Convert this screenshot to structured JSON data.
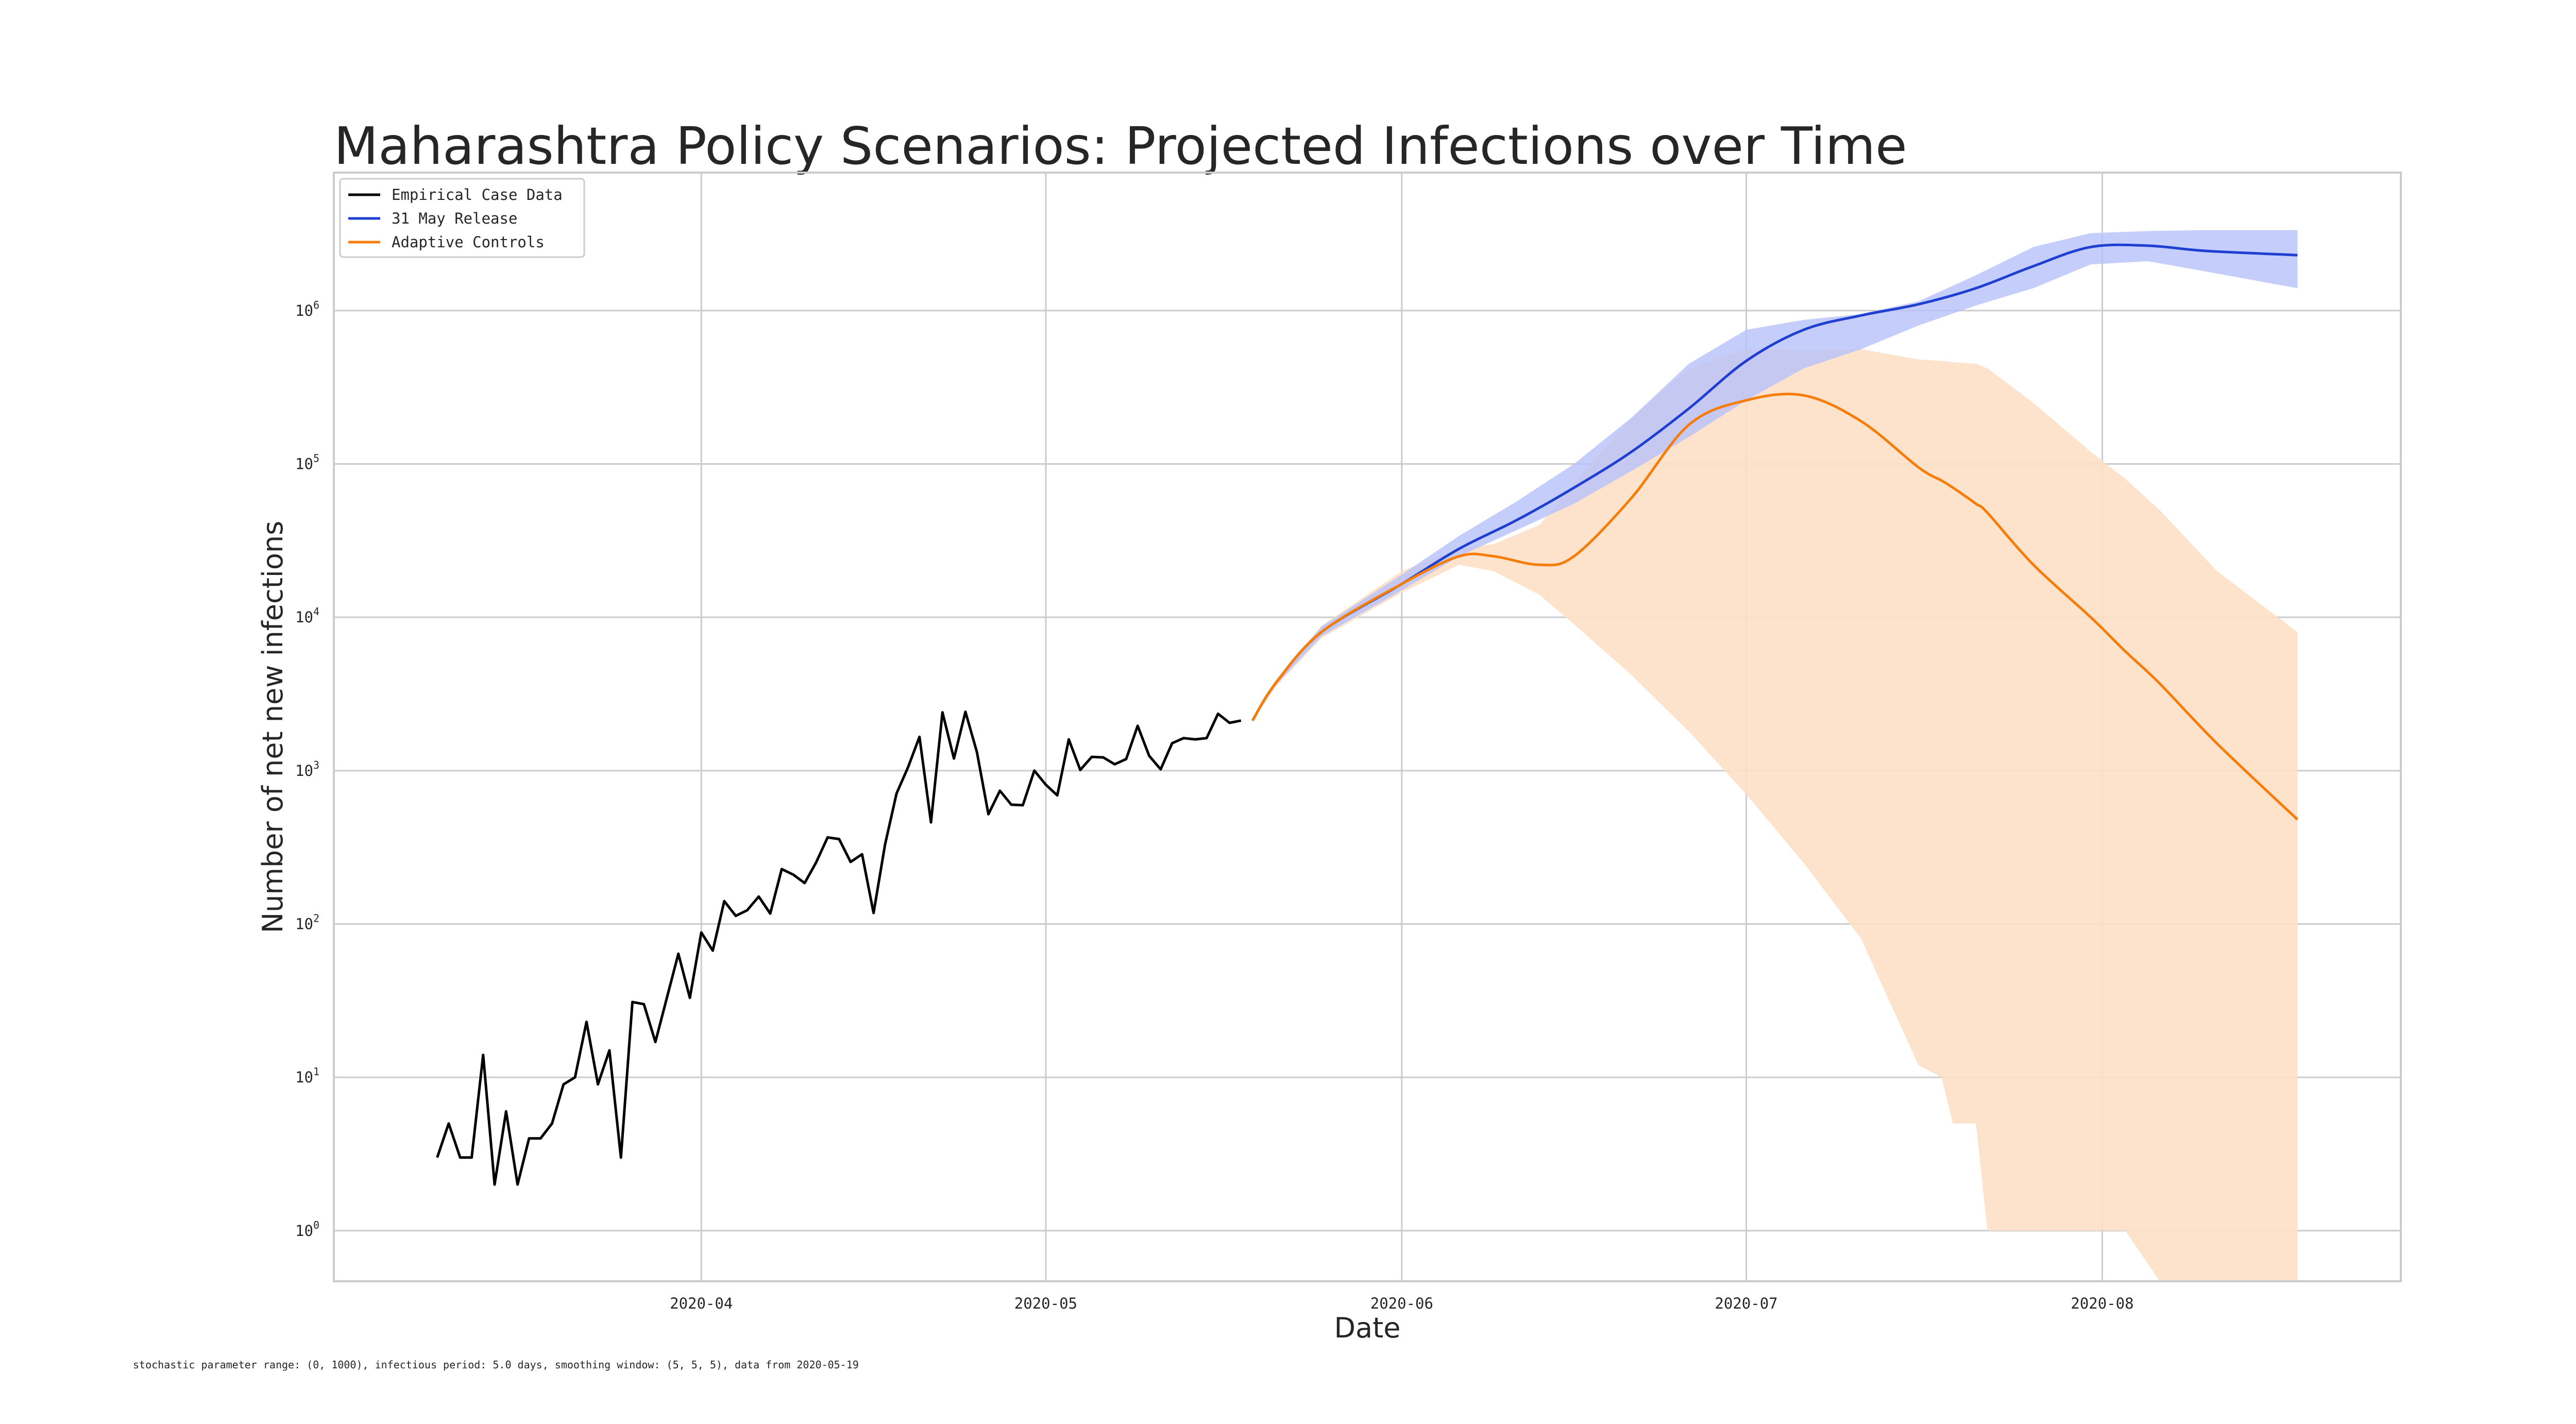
{
  "chart_data": {
    "type": "line",
    "title": "Maharashtra Policy Scenarios: Projected Infections over Time",
    "xlabel": "Date",
    "ylabel": "Number of net new infections",
    "yscale": "log",
    "ylim_exponents": [
      -0.33,
      6.9
    ],
    "xlim": [
      "2020-02-29",
      "2020-08-27"
    ],
    "grid": true,
    "legend_position": "top-left",
    "x_ticks": [
      "2020-04-01",
      "2020-05-01",
      "2020-06-01",
      "2020-07-01",
      "2020-08-01"
    ],
    "x_tick_labels": [
      "2020-04",
      "2020-05",
      "2020-06",
      "2020-07",
      "2020-08"
    ],
    "y_ticks": [
      0,
      1,
      2,
      3,
      4,
      5,
      6
    ],
    "series": [
      {
        "name": "Empirical Case Data",
        "color": "#000000",
        "start_date": "2020-03-09",
        "values": [
          3,
          5,
          3,
          3,
          14,
          2,
          6,
          2,
          4,
          4,
          5,
          9,
          10,
          23,
          9,
          15,
          3,
          31,
          30,
          17,
          33,
          64,
          33,
          88,
          67,
          141,
          113,
          123,
          151,
          117,
          228,
          210,
          185,
          252,
          367,
          358,
          254,
          285,
          118,
          330,
          710,
          1050,
          1660,
          460,
          2400,
          1200,
          2420,
          1320,
          520,
          740,
          600,
          595,
          1000,
          810,
          690,
          1600,
          1010,
          1230,
          1220,
          1100,
          1190,
          1960,
          1250,
          1020,
          1510,
          1630,
          1600,
          1630,
          2350,
          2050,
          2120
        ]
      },
      {
        "name": "31 May Release",
        "color": "#1f3fd0",
        "band_color": "#b7c2fa",
        "points": [
          {
            "date": "2020-05-19",
            "y": 2120,
            "lo": 2120,
            "hi": 2120
          },
          {
            "date": "2020-05-21",
            "y": 3700,
            "lo": 3600,
            "hi": 3800
          },
          {
            "date": "2020-05-25",
            "y": 8000,
            "lo": 7500,
            "hi": 8700
          },
          {
            "date": "2020-06-01",
            "y": 16500,
            "lo": 15000,
            "hi": 19000
          },
          {
            "date": "2020-06-06",
            "y": 28000,
            "lo": 25000,
            "hi": 34000
          },
          {
            "date": "2020-06-11",
            "y": 43000,
            "lo": 37000,
            "hi": 57000
          },
          {
            "date": "2020-06-16",
            "y": 70000,
            "lo": 55000,
            "hi": 100000
          },
          {
            "date": "2020-06-21",
            "y": 120000,
            "lo": 90000,
            "hi": 200000
          },
          {
            "date": "2020-06-26",
            "y": 230000,
            "lo": 150000,
            "hi": 450000
          },
          {
            "date": "2020-07-01",
            "y": 470000,
            "lo": 260000,
            "hi": 750000
          },
          {
            "date": "2020-07-06",
            "y": 750000,
            "lo": 420000,
            "hi": 870000
          },
          {
            "date": "2020-07-11",
            "y": 930000,
            "lo": 560000,
            "hi": 950000
          },
          {
            "date": "2020-07-16",
            "y": 1100000,
            "lo": 800000,
            "hi": 1150000
          },
          {
            "date": "2020-07-21",
            "y": 1400000,
            "lo": 1080000,
            "hi": 1700000
          },
          {
            "date": "2020-07-26",
            "y": 1950000,
            "lo": 1400000,
            "hi": 2600000
          },
          {
            "date": "2020-07-31",
            "y": 2600000,
            "lo": 2000000,
            "hi": 3200000
          },
          {
            "date": "2020-08-05",
            "y": 2650000,
            "lo": 2100000,
            "hi": 3300000
          },
          {
            "date": "2020-08-10",
            "y": 2450000,
            "lo": 1800000,
            "hi": 3350000
          },
          {
            "date": "2020-08-18",
            "y": 2300000,
            "lo": 1400000,
            "hi": 3350000
          }
        ]
      },
      {
        "name": "Adaptive Controls",
        "color": "#f57d0a",
        "band_color": "#fde0c5",
        "points": [
          {
            "date": "2020-05-19",
            "y": 2120,
            "lo": 2120,
            "hi": 2120
          },
          {
            "date": "2020-05-21",
            "y": 3700,
            "lo": 3500,
            "hi": 3900
          },
          {
            "date": "2020-05-25",
            "y": 8000,
            "lo": 7300,
            "hi": 8800
          },
          {
            "date": "2020-06-01",
            "y": 16500,
            "lo": 14500,
            "hi": 20000
          },
          {
            "date": "2020-06-06",
            "y": 25000,
            "lo": 22000,
            "hi": 28000
          },
          {
            "date": "2020-06-09",
            "y": 25000,
            "lo": 20000,
            "hi": 30000
          },
          {
            "date": "2020-06-13",
            "y": 22000,
            "lo": 14000,
            "hi": 40000
          },
          {
            "date": "2020-06-16",
            "y": 25000,
            "lo": 9000,
            "hi": 75000
          },
          {
            "date": "2020-06-21",
            "y": 60000,
            "lo": 4200,
            "hi": 200000
          },
          {
            "date": "2020-06-26",
            "y": 180000,
            "lo": 1800,
            "hi": 420000
          },
          {
            "date": "2020-07-01",
            "y": 260000,
            "lo": 700,
            "hi": 560000
          },
          {
            "date": "2020-07-06",
            "y": 280000,
            "lo": 250,
            "hi": 550000
          },
          {
            "date": "2020-07-11",
            "y": 190000,
            "lo": 80,
            "hi": 560000
          },
          {
            "date": "2020-07-16",
            "y": 95000,
            "lo": 12,
            "hi": 480000
          },
          {
            "date": "2020-07-18",
            "y": 78000,
            "lo": 10,
            "hi": 470000
          },
          {
            "date": "2020-07-19",
            "y": 70000,
            "lo": 5,
            "hi": 460000
          },
          {
            "date": "2020-07-21",
            "y": 55000,
            "lo": 5,
            "hi": 450000
          },
          {
            "date": "2020-07-22",
            "y": 48000,
            "lo": 1,
            "hi": 420000
          },
          {
            "date": "2020-07-26",
            "y": 22000,
            "lo": 1,
            "hi": 250000
          },
          {
            "date": "2020-07-31",
            "y": 10000,
            "lo": 1,
            "hi": 120000
          },
          {
            "date": "2020-08-03",
            "y": 6000,
            "lo": 1,
            "hi": 80000
          },
          {
            "date": "2020-08-06",
            "y": 3700,
            "lo": 0.47,
            "hi": 50000
          },
          {
            "date": "2020-08-11",
            "y": 1500,
            "lo": 0.47,
            "hi": 20000
          },
          {
            "date": "2020-08-18",
            "y": 480,
            "lo": 0.47,
            "hi": 8000
          }
        ]
      }
    ],
    "footnote": "stochastic parameter range: (0, 1000), infectious period: 5.0 days, smoothing window: (5, 5, 5), data from 2020-05-19"
  }
}
